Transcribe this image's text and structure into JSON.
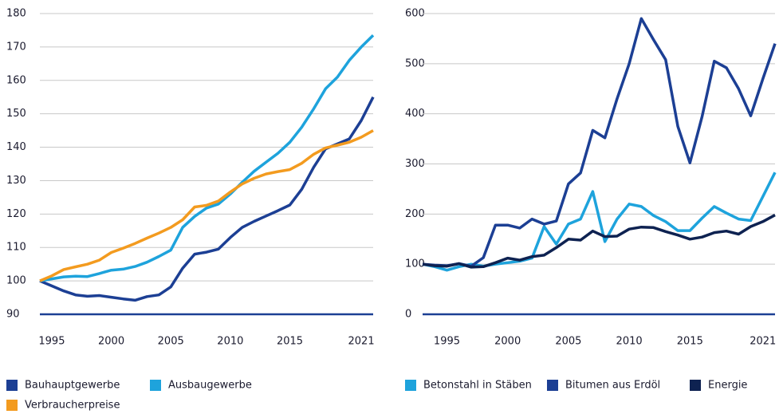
{
  "chart_data": [
    {
      "type": "line",
      "x": [
        1994,
        1995,
        1996,
        1997,
        1998,
        1999,
        2000,
        2001,
        2002,
        2003,
        2004,
        2005,
        2006,
        2007,
        2008,
        2009,
        2010,
        2011,
        2012,
        2013,
        2014,
        2015,
        2016,
        2017,
        2018,
        2019,
        2020,
        2021,
        2022
      ],
      "xlim": [
        1994,
        2022
      ],
      "xticks": [
        1995,
        2000,
        2005,
        2010,
        2015,
        2021
      ],
      "ylim": [
        90,
        180
      ],
      "yticks": [
        90,
        100,
        110,
        120,
        130,
        140,
        150,
        160,
        170,
        180
      ],
      "grid": true,
      "series": [
        {
          "name": "Bauhauptgewerbe",
          "color": "#1c3f94",
          "values": [
            100,
            98.5,
            97,
            95.8,
            95.4,
            95.6,
            95.1,
            94.6,
            94.2,
            95.3,
            95.8,
            98.2,
            103.8,
            108,
            108.6,
            109.5,
            113,
            116,
            117.8,
            119.4,
            121,
            122.7,
            127.4,
            134,
            139.5,
            141,
            142.5,
            148,
            155
          ]
        },
        {
          "name": "Ausbaugewerbe",
          "color": "#1ea3dc",
          "values": [
            100,
            100.6,
            101.2,
            101.4,
            101.3,
            102.2,
            103.2,
            103.5,
            104.3,
            105.6,
            107.3,
            109.2,
            116,
            119.3,
            121.8,
            123,
            126,
            129.5,
            132.8,
            135.5,
            138.2,
            141.5,
            146,
            151.5,
            157.5,
            161,
            166,
            170,
            173.5
          ]
        },
        {
          "name": "Verbraucherpreise",
          "color": "#f39b1f",
          "values": [
            100,
            101.5,
            103.4,
            104.2,
            105,
            106.2,
            108.5,
            109.8,
            111.2,
            112.8,
            114.3,
            116,
            118.3,
            122.1,
            122.6,
            123.9,
            126.6,
            129,
            130.7,
            132,
            132.7,
            133.3,
            135.2,
            137.9,
            139.8,
            140.6,
            141.5,
            143,
            145
          ]
        }
      ]
    },
    {
      "type": "line",
      "x": [
        1993,
        1994,
        1995,
        1996,
        1997,
        1998,
        1999,
        2000,
        2001,
        2002,
        2003,
        2004,
        2005,
        2006,
        2007,
        2008,
        2009,
        2010,
        2011,
        2012,
        2013,
        2014,
        2015,
        2016,
        2017,
        2018,
        2019,
        2020,
        2021,
        2022
      ],
      "xlim": [
        1993,
        2022
      ],
      "xticks": [
        1995,
        2000,
        2005,
        2010,
        2015,
        2021
      ],
      "ylim": [
        0,
        600
      ],
      "yticks": [
        0,
        100,
        200,
        300,
        400,
        500,
        600
      ],
      "grid": true,
      "series": [
        {
          "name": "Betonstahl in Stäben",
          "color": "#1ea3dc",
          "values": [
            100,
            95,
            88,
            95,
            100,
            96,
            100,
            103,
            106,
            112,
            175,
            140,
            180,
            190,
            245,
            145,
            190,
            220,
            215,
            197,
            185,
            167,
            167,
            192,
            215,
            202,
            190,
            187,
            235,
            283
          ]
        },
        {
          "name": "Bitumen aus Erdöl",
          "color": "#1c3f94",
          "values": [
            100,
            98,
            97,
            101,
            96,
            113,
            178,
            178,
            172,
            190,
            180,
            186,
            260,
            282,
            367,
            352,
            430,
            500,
            590,
            548,
            508,
            375,
            302,
            395,
            505,
            492,
            450,
            396,
            470,
            540
          ]
        },
        {
          "name": "Energie",
          "color": "#0e2251",
          "values": [
            100,
            97,
            96,
            101,
            94,
            95,
            103,
            112,
            108,
            115,
            118,
            133,
            150,
            148,
            166,
            155,
            156,
            170,
            174,
            173,
            165,
            158,
            150,
            154,
            163,
            166,
            160,
            175,
            185,
            198
          ]
        }
      ]
    }
  ]
}
